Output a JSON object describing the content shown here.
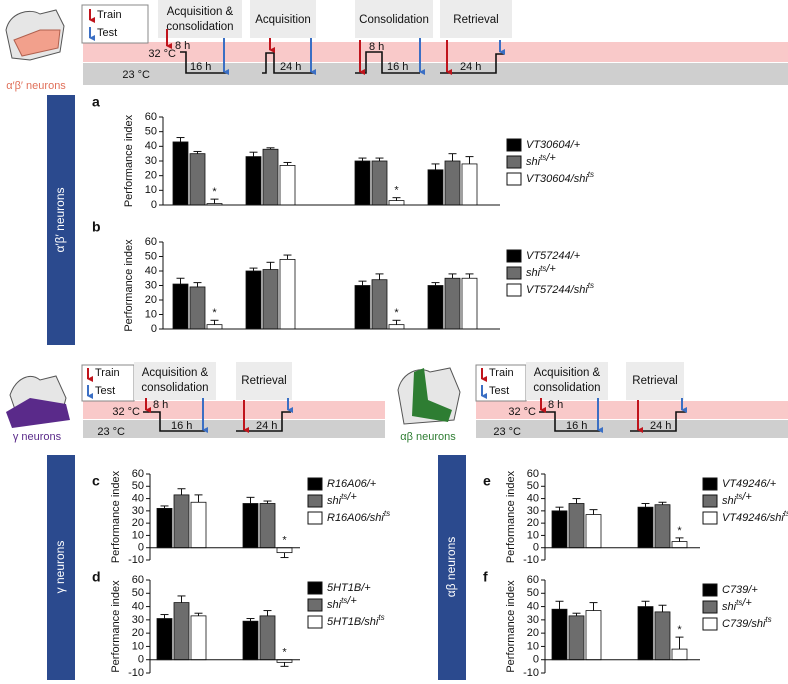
{
  "neurons": {
    "top": {
      "caption": "α′β′ neurons",
      "side": "α′β′ neurons"
    },
    "left": {
      "caption": "γ neurons",
      "side": "γ neurons"
    },
    "right": {
      "caption": "αβ neurons",
      "side": "αβ neurons"
    }
  },
  "protocols": [
    {
      "legend": {
        "train": "Train",
        "test": "Test"
      },
      "temps": [
        "32 °C",
        "23 °C"
      ],
      "steps": [
        {
          "lines": [
            "Acquisition &",
            "consolidation"
          ],
          "durations": [
            "8 h",
            "16 h"
          ]
        },
        {
          "lines": [
            "Acquisition"
          ],
          "durations": [
            "24 h"
          ]
        },
        {
          "lines": [
            "Consolidation"
          ],
          "durations": [
            "8 h",
            "16 h"
          ]
        },
        {
          "lines": [
            "Retrieval"
          ],
          "durations": [
            "24 h"
          ]
        }
      ]
    },
    {
      "legend": {
        "train": "Train",
        "test": "Test"
      },
      "temps": [
        "32 °C",
        "23 °C"
      ],
      "steps": [
        {
          "lines": [
            "Acquisition &",
            "consolidation"
          ],
          "durations": [
            "8 h",
            "16 h"
          ]
        },
        {
          "lines": [
            "Retrieval"
          ],
          "durations": [
            "24 h"
          ]
        }
      ]
    },
    {
      "legend": {
        "train": "Train",
        "test": "Test"
      },
      "temps": [
        "32 °C",
        "23 °C"
      ],
      "steps": [
        {
          "lines": [
            "Acquisition &",
            "consolidation"
          ],
          "durations": [
            "8 h",
            "16 h"
          ]
        },
        {
          "lines": [
            "Retrieval"
          ],
          "durations": [
            "24 h"
          ]
        }
      ]
    }
  ],
  "chart_data": [
    {
      "type": "bar",
      "panel": "a",
      "ylabel": "Performance index",
      "categories": [
        null,
        null,
        null,
        null
      ],
      "ylim": [
        0,
        60
      ],
      "yticks": [
        0,
        10,
        20,
        30,
        40,
        50,
        60
      ],
      "series": [
        {
          "name": "VT30604/+",
          "color": "#000000",
          "values": [
            43,
            33,
            30,
            24
          ],
          "errors": [
            3,
            3,
            2,
            4
          ]
        },
        {
          "name": "shits/+",
          "color": "#6d6d6d",
          "values": [
            35,
            38,
            30,
            30
          ],
          "errors": [
            1.5,
            1,
            2,
            5
          ]
        },
        {
          "name": "VT30604/shits",
          "color": "#ffffff",
          "values": [
            1,
            27,
            3,
            28
          ],
          "errors": [
            3,
            2,
            2,
            5
          ],
          "significance": [
            "*",
            null,
            "*",
            null
          ]
        }
      ]
    },
    {
      "type": "bar",
      "panel": "b",
      "ylabel": "Performance index",
      "categories": [
        null,
        null,
        null,
        null
      ],
      "ylim": [
        0,
        60
      ],
      "yticks": [
        0,
        10,
        20,
        30,
        40,
        50,
        60
      ],
      "series": [
        {
          "name": "VT57244/+",
          "color": "#000000",
          "values": [
            31,
            40,
            30,
            30
          ],
          "errors": [
            4,
            2,
            3,
            2
          ]
        },
        {
          "name": "shits/+",
          "color": "#6d6d6d",
          "values": [
            29,
            41,
            34,
            35
          ],
          "errors": [
            3,
            5,
            4,
            3
          ]
        },
        {
          "name": "VT57244/shits",
          "color": "#ffffff",
          "values": [
            3,
            48,
            3,
            35
          ],
          "errors": [
            3,
            3,
            3,
            3
          ],
          "significance": [
            "*",
            null,
            "*",
            null
          ]
        }
      ]
    },
    {
      "type": "bar",
      "panel": "c",
      "ylabel": "Performance index",
      "categories": [
        null,
        null
      ],
      "ylim": [
        -10,
        60
      ],
      "yticks": [
        -10,
        0,
        10,
        20,
        30,
        40,
        50,
        60
      ],
      "series": [
        {
          "name": "R16A06/+",
          "color": "#000000",
          "values": [
            32,
            36
          ],
          "errors": [
            2,
            5
          ]
        },
        {
          "name": "shits/+",
          "color": "#6d6d6d",
          "values": [
            43,
            36
          ],
          "errors": [
            5,
            2
          ]
        },
        {
          "name": "R16A06/shits",
          "color": "#ffffff",
          "values": [
            37,
            -4
          ],
          "errors": [
            6,
            4
          ],
          "significance": [
            null,
            "*"
          ]
        }
      ]
    },
    {
      "type": "bar",
      "panel": "d",
      "ylabel": "Performance index",
      "categories": [
        null,
        null
      ],
      "ylim": [
        -10,
        60
      ],
      "yticks": [
        -10,
        0,
        10,
        20,
        30,
        40,
        50,
        60
      ],
      "series": [
        {
          "name": "5HT1B/+",
          "color": "#000000",
          "values": [
            31,
            29
          ],
          "errors": [
            3,
            2
          ]
        },
        {
          "name": "shits/+",
          "color": "#6d6d6d",
          "values": [
            43,
            33
          ],
          "errors": [
            5,
            4
          ]
        },
        {
          "name": "5HT1B/shits",
          "color": "#ffffff",
          "values": [
            33,
            -2
          ],
          "errors": [
            2,
            3
          ],
          "significance": [
            null,
            "*"
          ]
        }
      ]
    },
    {
      "type": "bar",
      "panel": "e",
      "ylabel": "Performance index",
      "categories": [
        null,
        null
      ],
      "ylim": [
        -10,
        60
      ],
      "yticks": [
        -10,
        0,
        10,
        20,
        30,
        40,
        50,
        60
      ],
      "series": [
        {
          "name": "VT49246/+",
          "color": "#000000",
          "values": [
            30,
            33
          ],
          "errors": [
            3,
            3
          ]
        },
        {
          "name": "shits/+",
          "color": "#6d6d6d",
          "values": [
            36,
            35
          ],
          "errors": [
            4,
            2
          ]
        },
        {
          "name": "VT49246/shits",
          "color": "#ffffff",
          "values": [
            27,
            5
          ],
          "errors": [
            4,
            3
          ],
          "significance": [
            null,
            "*"
          ]
        }
      ]
    },
    {
      "type": "bar",
      "panel": "f",
      "ylabel": "Performance index",
      "categories": [
        null,
        null
      ],
      "ylim": [
        -10,
        60
      ],
      "yticks": [
        -10,
        0,
        10,
        20,
        30,
        40,
        50,
        60
      ],
      "series": [
        {
          "name": "C739/+",
          "color": "#000000",
          "values": [
            38,
            40
          ],
          "errors": [
            6,
            4
          ]
        },
        {
          "name": "shits/+",
          "color": "#6d6d6d",
          "values": [
            33,
            36
          ],
          "errors": [
            2,
            5
          ]
        },
        {
          "name": "C739/shits",
          "color": "#ffffff",
          "values": [
            37,
            8
          ],
          "errors": [
            6,
            9
          ],
          "significance": [
            null,
            "*"
          ]
        }
      ]
    }
  ]
}
